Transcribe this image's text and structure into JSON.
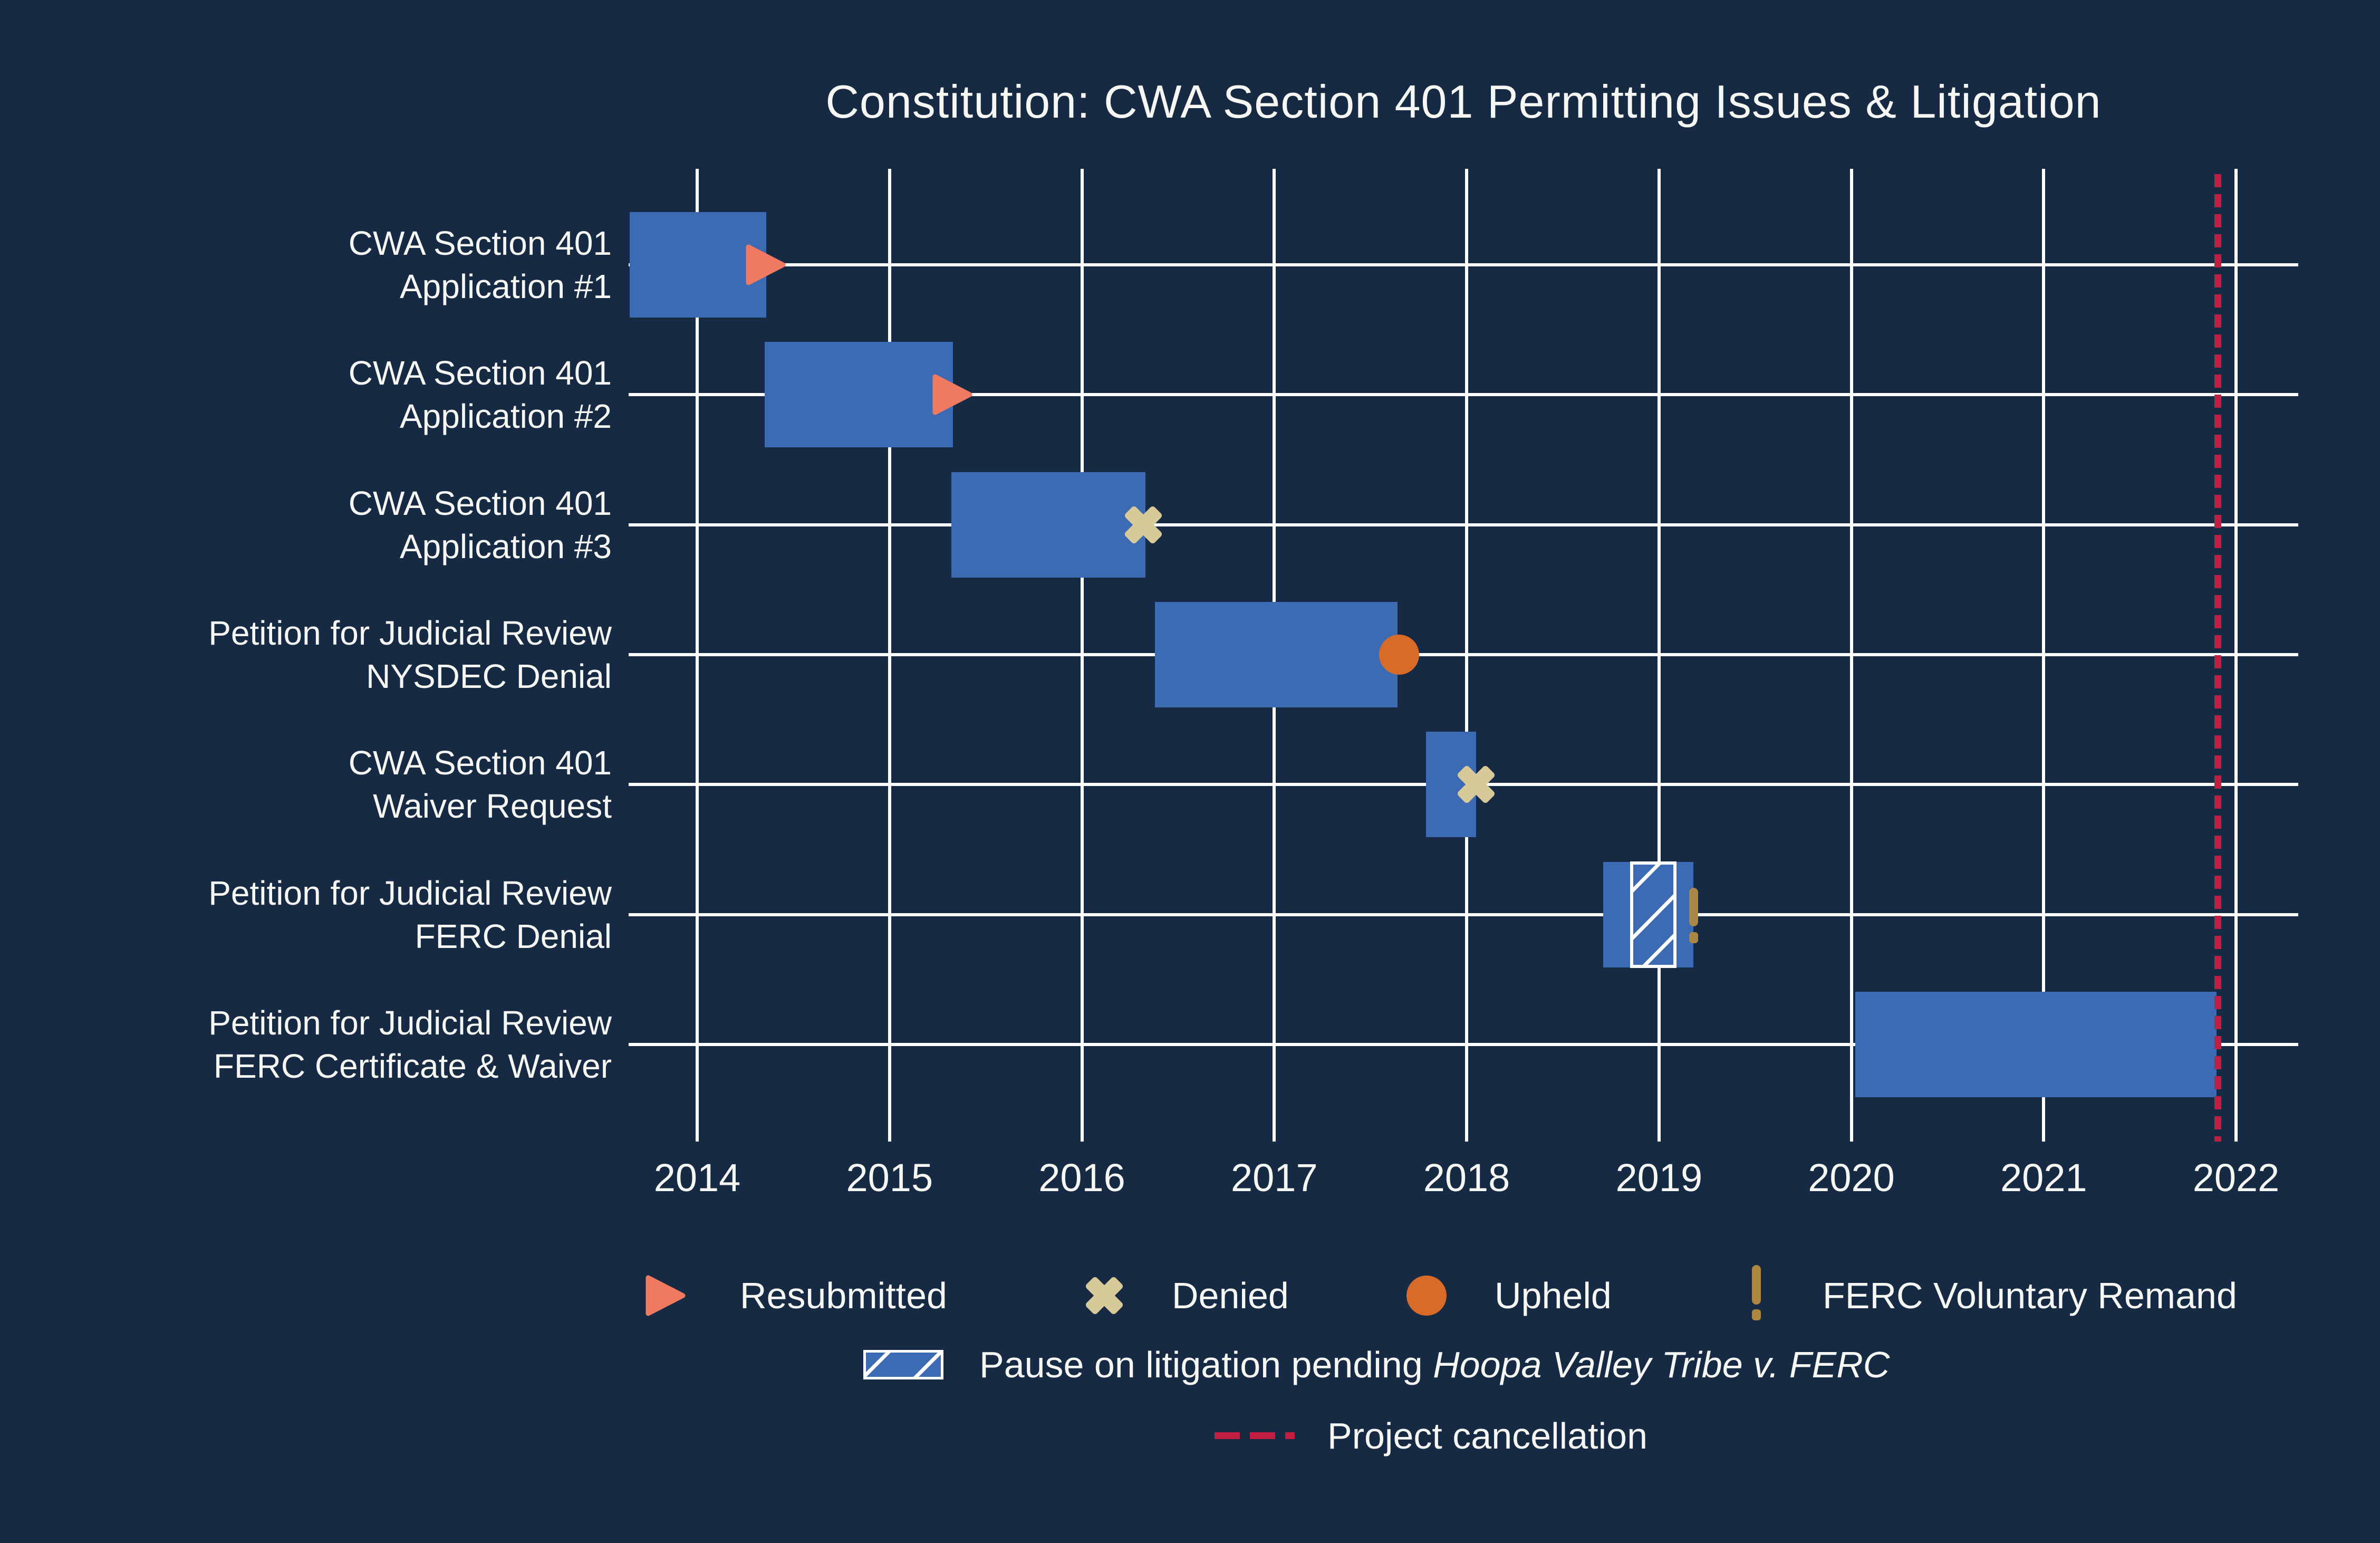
{
  "title": "Constitution: CWA Section 401 Permitting Issues & Litigation",
  "colors": {
    "bg": "#172A44",
    "bar": "#3C6BB3",
    "grid": "#FFFFFF",
    "text": "#F6F6F3",
    "salmon": "#EF7961",
    "tan": "#D8C998",
    "orange": "#D96B28",
    "gold": "#AC8742",
    "red": "#C11F41"
  },
  "legend": {
    "resubmitted": "Resubmitted",
    "denied": "Denied",
    "upheld": "Upheld",
    "remand": "FERC Voluntary Remand",
    "pause_prefix": "Pause on litigation pending ",
    "pause_case": "Hoopa Valley Tribe v. FERC",
    "cancellation": "Project cancellation"
  },
  "chart_data": {
    "type": "gantt",
    "title": "Constitution: CWA Section 401 Permitting Issues & Litigation",
    "x_axis": {
      "unit": "year",
      "ticks": [
        2014,
        2015,
        2016,
        2017,
        2018,
        2019,
        2020,
        2021,
        2022
      ],
      "range": [
        2013.6,
        2022.3
      ],
      "grid": true
    },
    "rows": [
      {
        "label": [
          "CWA Section 401",
          "Application #1"
        ],
        "start": 2013.65,
        "end": 2014.36,
        "event": {
          "type": "resubmitted",
          "at": 2014.36
        }
      },
      {
        "label": [
          "CWA Section 401",
          "Application #2"
        ],
        "start": 2014.35,
        "end": 2015.33,
        "event": {
          "type": "resubmitted",
          "at": 2015.33
        }
      },
      {
        "label": [
          "CWA Section 401",
          "Application #3"
        ],
        "start": 2015.32,
        "end": 2016.33,
        "event": {
          "type": "denied",
          "at": 2016.32
        }
      },
      {
        "label": [
          "Petition for Judicial Review",
          "NYSDEC Denial"
        ],
        "start": 2016.38,
        "end": 2017.64,
        "event": {
          "type": "upheld",
          "at": 2017.65
        }
      },
      {
        "label": [
          "CWA Section 401",
          "Waiver Request"
        ],
        "start": 2017.79,
        "end": 2018.05,
        "event": {
          "type": "denied",
          "at": 2018.05
        }
      },
      {
        "label": [
          "Petition for Judicial Review",
          "FERC Denial"
        ],
        "start": 2018.71,
        "end": 2019.18,
        "event": {
          "type": "ferc-voluntary-remand",
          "at": 2019.18
        },
        "pause": {
          "start": 2018.85,
          "end": 2019.09,
          "note": "Pause on litigation pending Hoopa Valley Tribe v. FERC"
        }
      },
      {
        "label": [
          "Petition for Judicial Review",
          "FERC Certificate & Waiver"
        ],
        "start": 2020.02,
        "end": 2021.9,
        "event": null
      }
    ],
    "annotations": {
      "project_cancellation_at": 2021.905
    },
    "legend_entries": [
      "Resubmitted",
      "Denied",
      "Upheld",
      "FERC Voluntary Remand",
      "Pause on litigation pending Hoopa Valley Tribe v. FERC",
      "Project cancellation"
    ],
    "legend_position": "bottom"
  }
}
